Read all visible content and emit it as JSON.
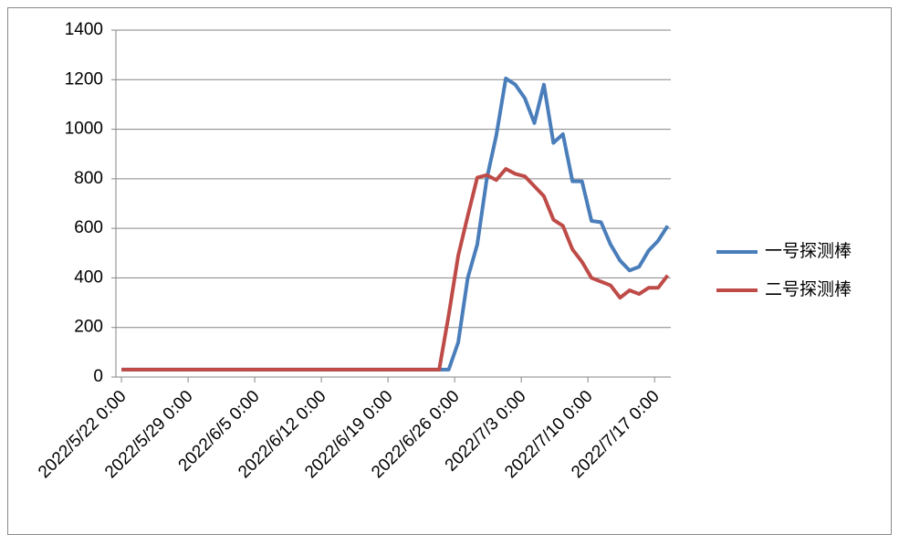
{
  "chart_data": {
    "type": "line",
    "x": [
      "2022-05-22T00:00",
      "2022-06-24T09:00",
      "2022-06-25T09:00",
      "2022-06-26T09:00",
      "2022-06-27T09:00",
      "2022-06-28T09:00",
      "2022-06-29T09:00",
      "2022-06-30T09:00",
      "2022-07-01T09:00",
      "2022-07-02T09:00",
      "2022-07-03T09:00",
      "2022-07-04T09:00",
      "2022-07-05T09:00",
      "2022-07-06T09:00",
      "2022-07-07T09:00",
      "2022-07-08T09:00",
      "2022-07-09T09:00",
      "2022-07-10T09:00",
      "2022-07-11T09:00",
      "2022-07-12T09:00",
      "2022-07-13T09:00",
      "2022-07-14T09:00",
      "2022-07-15T09:00",
      "2022-07-16T09:00",
      "2022-07-17T09:00",
      "2022-07-18T09:00"
    ],
    "series": [
      {
        "name": "一号探测棒",
        "color": "#4a7ebb",
        "values": [
          30,
          30,
          30,
          140,
          400,
          535,
          800,
          975,
          1205,
          1180,
          1125,
          1025,
          1180,
          945,
          980,
          790,
          790,
          630,
          625,
          535,
          470,
          430,
          445,
          510,
          550,
          610
        ]
      },
      {
        "name": "二号探测棒",
        "color": "#be4b48",
        "values": [
          30,
          30,
          250,
          490,
          650,
          805,
          815,
          795,
          840,
          820,
          810,
          770,
          730,
          635,
          610,
          515,
          465,
          400,
          385,
          370,
          320,
          350,
          335,
          360,
          360,
          410
        ]
      }
    ],
    "xlim": [
      "2022-05-21T10:00",
      "2022-07-18T17:00"
    ],
    "xticks": [
      {
        "value": "2022-05-22T00:00",
        "label": "2022/5/22 0:00"
      },
      {
        "value": "2022-05-29T00:00",
        "label": "2022/5/29 0:00"
      },
      {
        "value": "2022-06-05T00:00",
        "label": "2022/6/5 0:00"
      },
      {
        "value": "2022-06-12T00:00",
        "label": "2022/6/12 0:00"
      },
      {
        "value": "2022-06-19T00:00",
        "label": "2022/6/19 0:00"
      },
      {
        "value": "2022-06-26T00:00",
        "label": "2022/6/26 0:00"
      },
      {
        "value": "2022-07-03T00:00",
        "label": "2022/7/3 0:00"
      },
      {
        "value": "2022-07-10T00:00",
        "label": "2022/7/10 0:00"
      },
      {
        "value": "2022-07-17T00:00",
        "label": "2022/7/17 0:00"
      }
    ],
    "ylim": [
      0,
      1400
    ],
    "yticks": [
      0,
      200,
      400,
      600,
      800,
      1000,
      1200,
      1400
    ],
    "grid": true,
    "legend": "right"
  }
}
